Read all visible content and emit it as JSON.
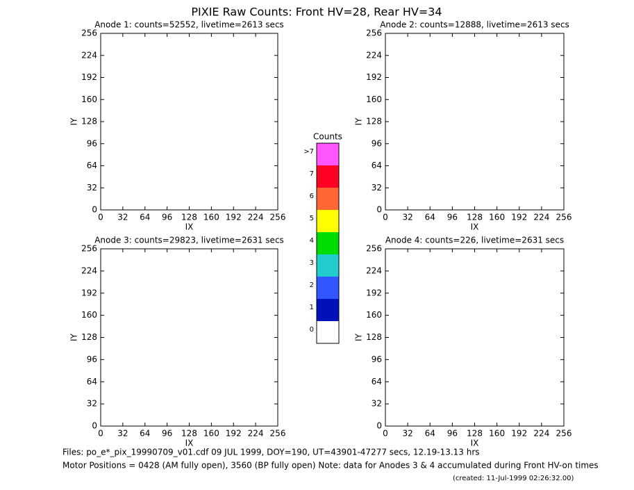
{
  "title": "PIXIE Raw Counts:  Front HV=28, Rear HV=34",
  "chart_data": [
    {
      "type": "heatmap",
      "title": "Anode 1: counts=52552, livetime=2613 secs",
      "xlabel": "IX",
      "ylabel": "IY",
      "xlim": [
        0,
        256
      ],
      "ylim": [
        0,
        256
      ],
      "xticks": [
        0,
        32,
        64,
        96,
        128,
        160,
        192,
        224,
        256
      ],
      "yticks": [
        0,
        32,
        64,
        96,
        128,
        160,
        192,
        224,
        256
      ]
    },
    {
      "type": "heatmap",
      "title": "Anode 2: counts=12888, livetime=2613 secs",
      "xlabel": "IX",
      "ylabel": "IY",
      "xlim": [
        0,
        256
      ],
      "ylim": [
        0,
        256
      ],
      "xticks": [
        0,
        32,
        64,
        96,
        128,
        160,
        192,
        224,
        256
      ],
      "yticks": [
        0,
        32,
        64,
        96,
        128,
        160,
        192,
        224,
        256
      ]
    },
    {
      "type": "heatmap",
      "title": "Anode 3: counts=29823, livetime=2631 secs",
      "xlabel": "IX",
      "ylabel": "IY",
      "xlim": [
        0,
        256
      ],
      "ylim": [
        0,
        256
      ],
      "xticks": [
        0,
        32,
        64,
        96,
        128,
        160,
        192,
        224,
        256
      ],
      "yticks": [
        0,
        32,
        64,
        96,
        128,
        160,
        192,
        224,
        256
      ]
    },
    {
      "type": "heatmap",
      "title": "Anode 4: counts=226, livetime=2631 secs",
      "xlabel": "IX",
      "ylabel": "IY",
      "xlim": [
        0,
        256
      ],
      "ylim": [
        0,
        256
      ],
      "xticks": [
        0,
        32,
        64,
        96,
        128,
        160,
        192,
        224,
        256
      ],
      "yticks": [
        0,
        32,
        64,
        96,
        128,
        160,
        192,
        224,
        256
      ]
    }
  ],
  "colorbar": {
    "title": "Counts",
    "labels": [
      ">7",
      "7",
      "6",
      "5",
      "4",
      "3",
      "2",
      "1",
      "0"
    ],
    "colors": [
      "#ff55ff",
      "#ff0022",
      "#ff6633",
      "#ffff00",
      "#00dd00",
      "#22cccc",
      "#3355ff",
      "#0011bb",
      "#ffffff"
    ]
  },
  "footer": [
    "Files: po_e*_pix_19990709_v01.cdf    09 JUL 1999, DOY=190, UT=43901-47277 secs, 12.19-13.13 hrs",
    "Motor Positions = 0428 (AM fully open), 3560 (BP fully open)    Note: data for Anodes 3 & 4 accumulated during Front HV-on times",
    "(created: 11-Jul-1999 02:26:32.00)"
  ]
}
